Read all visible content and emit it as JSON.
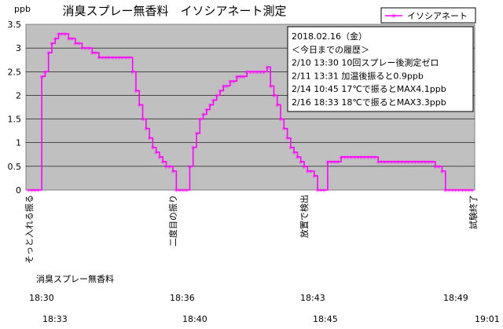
{
  "chart_data": {
    "type": "line",
    "title": "消臭スプレー無香料　イソシアネート測定",
    "unit": "ppb",
    "ylim": [
      0,
      3.5
    ],
    "yticks": [
      0,
      0.5,
      1,
      1.5,
      2,
      2.5,
      3,
      3.5
    ],
    "ytick_labels": [
      "0",
      "0.5",
      "1",
      "1.5",
      "2",
      "2.5",
      "3",
      "3.5"
    ],
    "grid": "horizontal",
    "legend_position": "top-right",
    "series": [
      {
        "name": "イソシアネート",
        "color": "#ff00ff",
        "values": [
          0,
          0,
          0,
          0,
          2.4,
          2.5,
          2.9,
          3.1,
          3.2,
          3.3,
          3.3,
          3.3,
          3.2,
          3.2,
          3.1,
          3.1,
          3.0,
          3.0,
          3.0,
          2.9,
          2.9,
          2.8,
          2.8,
          2.8,
          2.8,
          2.8,
          2.8,
          2.8,
          2.8,
          2.8,
          2.8,
          2.5,
          2.1,
          1.8,
          1.5,
          1.3,
          1.1,
          0.9,
          0.8,
          0.7,
          0.6,
          0.5,
          0.5,
          0.4,
          0,
          0,
          0,
          0,
          0.5,
          0.9
        ]
      }
    ],
    "series_b_values": [
      1.2,
      1.5,
      1.6,
      1.7,
      1.8,
      1.9,
      2.0,
      2.1,
      2.2,
      2.2,
      2.3,
      2.3,
      2.4,
      2.4,
      2.4,
      2.5,
      2.5,
      2.5,
      2.5,
      2.5,
      2.5,
      2.6,
      2.2,
      2.0,
      1.8,
      1.5,
      1.3,
      1.1,
      0.9,
      0.8,
      0.7,
      0.6,
      0.5,
      0.4,
      0.4,
      0.3,
      0,
      0,
      0,
      0.6,
      0.6,
      0.6,
      0.6,
      0.7,
      0.7,
      0.7,
      0.7,
      0.7,
      0.7,
      0.7,
      0.7,
      0.7,
      0.7,
      0.7,
      0.6,
      0.6,
      0.6,
      0.6,
      0.6,
      0.6,
      0.6,
      0.6,
      0.6,
      0.6,
      0.6,
      0.6,
      0.6,
      0.6,
      0.6,
      0.6,
      0.6,
      0.5,
      0.5,
      0.4,
      0,
      0,
      0,
      0,
      0,
      0,
      0,
      0,
      0
    ],
    "vertical_labels": [
      "そっと入れる振る",
      "二度目の振り",
      "放置で検出",
      "試験終了"
    ],
    "product_label": "消臭スプレー無香料",
    "time_row1": [
      "18:30",
      "18:36",
      "18:43",
      "18:49"
    ],
    "time_row2": [
      "18:33",
      "18:40",
      "18:45",
      "19:01"
    ],
    "info_box": [
      "2018.02.16（金）",
      "＜今日までの履歴＞",
      "2/10  13:30    10回スプレー後測定ゼロ",
      "2/11  13:31    加温後振ると0.9ppb",
      "2/14  10:45    17℃で振るとMAX4.1ppb",
      "2/16  18:33    18℃で振るとMAX3.3ppb"
    ]
  }
}
